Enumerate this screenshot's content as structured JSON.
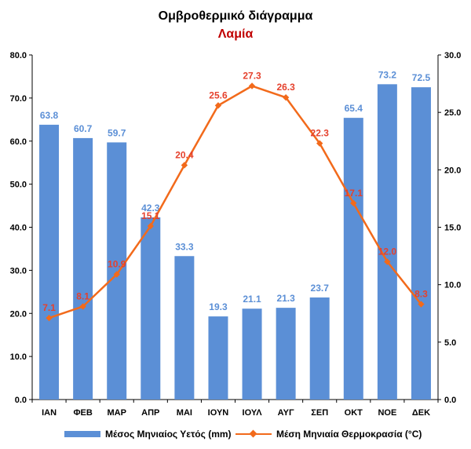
{
  "chart_data": {
    "type": "bar+line",
    "title": "Ομβροθερμικό διάγραμμα",
    "subtitle": "Λαμία",
    "categories": [
      "ΙΑΝ",
      "ΦΕΒ",
      "ΜΑΡ",
      "ΑΠΡ",
      "ΜΑΙ",
      "ΙΟΥΝ",
      "ΙΟΥΛ",
      "ΑΥΓ",
      "ΣΕΠ",
      "ΟΚΤ",
      "ΝΟΕ",
      "ΔΕΚ"
    ],
    "series": [
      {
        "name": "Μέσος Μηνιαίος Υετός (mm)",
        "type": "bar",
        "axis": "left",
        "color": "#5b8fd6",
        "values": [
          63.8,
          60.7,
          59.7,
          42.3,
          33.3,
          19.3,
          21.1,
          21.3,
          23.7,
          65.4,
          73.2,
          72.5
        ],
        "labels": [
          "63.8",
          "60.7",
          "59.7",
          "42.3",
          "33.3",
          "19.3",
          "21.1",
          "21.3",
          "23.7",
          "65.4",
          "73.2",
          "72.5"
        ]
      },
      {
        "name": "Μέση Μηνιαία Θερμοκρασία (°C)",
        "type": "line",
        "axis": "right",
        "color": "#f26a1b",
        "label_color": "#e5412d",
        "values": [
          7.1,
          8.1,
          10.9,
          15.1,
          20.4,
          25.6,
          27.3,
          26.3,
          22.3,
          17.1,
          12.0,
          8.3
        ],
        "labels": [
          "7.1",
          "8.1",
          "10.9",
          "15.1",
          "20.4",
          "25.6",
          "27.3",
          "26.3",
          "22.3",
          "17.1",
          "12.0",
          "8.3"
        ]
      }
    ],
    "y_left": {
      "min": 0,
      "max": 80,
      "ticks": [
        "0.0",
        "10.0",
        "20.0",
        "30.0",
        "40.0",
        "50.0",
        "60.0",
        "70.0",
        "80.0"
      ]
    },
    "y_right": {
      "min": 0,
      "max": 30,
      "ticks": [
        "0.0",
        "5.0",
        "10.0",
        "15.0",
        "20.0",
        "25.0",
        "30.0"
      ]
    },
    "grid": false,
    "legend_position": "bottom"
  }
}
